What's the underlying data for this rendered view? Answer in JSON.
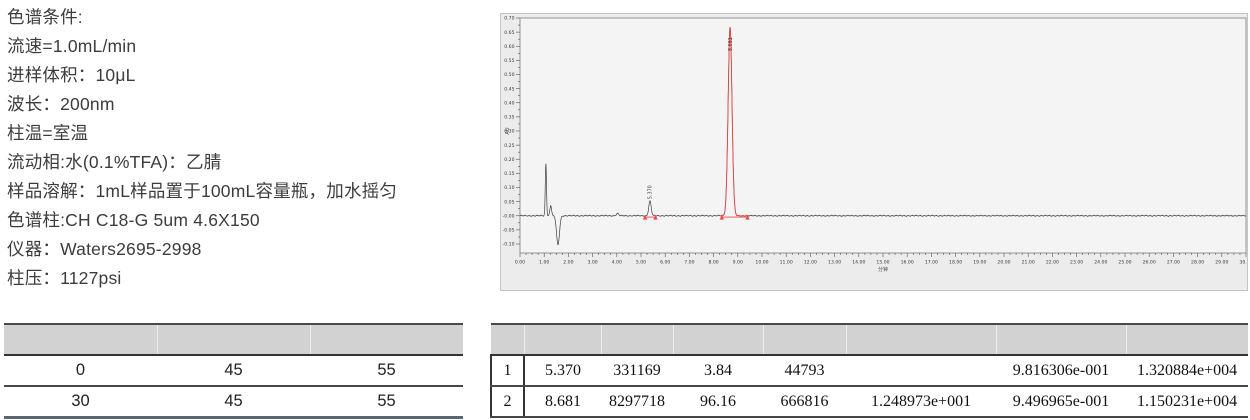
{
  "conditions": {
    "lines": [
      "色谱条件:",
      "流速=1.0mL/min",
      "进样体积：10μL",
      "波长：200nm",
      "柱温=室温",
      "流动相:水(0.1%TFA)：乙腈",
      "样品溶解：1mL样品置于100mL容量瓶，加水摇匀",
      "色谱柱:CH C18-G 5um 4.6X150",
      "仪器：Waters2695-2998",
      "柱压：1127psi"
    ]
  },
  "chart_data": {
    "type": "line",
    "title": "",
    "xlabel": "分钟",
    "ylabel": "AU",
    "x_min": 0,
    "x_max": 30,
    "x_major": 1.0,
    "x_minor": 0.25,
    "y_min": -0.1,
    "y_max": 0.7,
    "y_major": 0.05,
    "y_minor": 0.025,
    "baseline_au": 0.0,
    "noise_amp": 0.0011,
    "grid": "off",
    "peaks": [
      {
        "rt": 1.07,
        "sigma": 0.025,
        "height": 0.185
      },
      {
        "rt": 1.27,
        "sigma": 0.035,
        "height": 0.036
      },
      {
        "rt": 1.57,
        "sigma": 0.06,
        "height": -0.103
      },
      {
        "rt": 4.03,
        "sigma": 0.05,
        "height": 0.008
      },
      {
        "rt": 5.37,
        "sigma": 0.05,
        "height": 0.052,
        "label": "5.370",
        "label_color": "#3a3a3a"
      },
      {
        "rt": 8.681,
        "sigma": 0.08,
        "height": 0.668,
        "label": "8.681",
        "label_color": "#7a1d1d",
        "segment_color": "#e04848",
        "segment": [
          8.3,
          9.45
        ],
        "label_inside": true
      }
    ],
    "integration_regions": [
      {
        "start": 5.17,
        "end": 5.6
      },
      {
        "start": 8.34,
        "end": 9.4
      }
    ],
    "colors": {
      "trace": "#3f3f3f",
      "integration": "#f04848",
      "plot_bg": "#f4f4f4",
      "panel_bg": "#ececec",
      "axis": "#8a8a8a",
      "tick_text": "#3a3a3a"
    }
  },
  "tables": {
    "gradient": {
      "header": [
        "",
        "",
        ""
      ],
      "rows": [
        [
          "0",
          "45",
          "55"
        ],
        [
          "30",
          "45",
          "55"
        ]
      ]
    },
    "peaks": {
      "header": [
        "",
        "",
        "",
        "",
        "",
        "",
        "",
        ""
      ],
      "rows": [
        [
          "1",
          "5.370",
          "331169",
          "3.84",
          "44793",
          "",
          "9.816306e-001",
          "1.320884e+004"
        ],
        [
          "2",
          "8.681",
          "8297718",
          "96.16",
          "666816",
          "1.248973e+001",
          "9.496965e-001",
          "1.150231e+004"
        ]
      ]
    }
  }
}
